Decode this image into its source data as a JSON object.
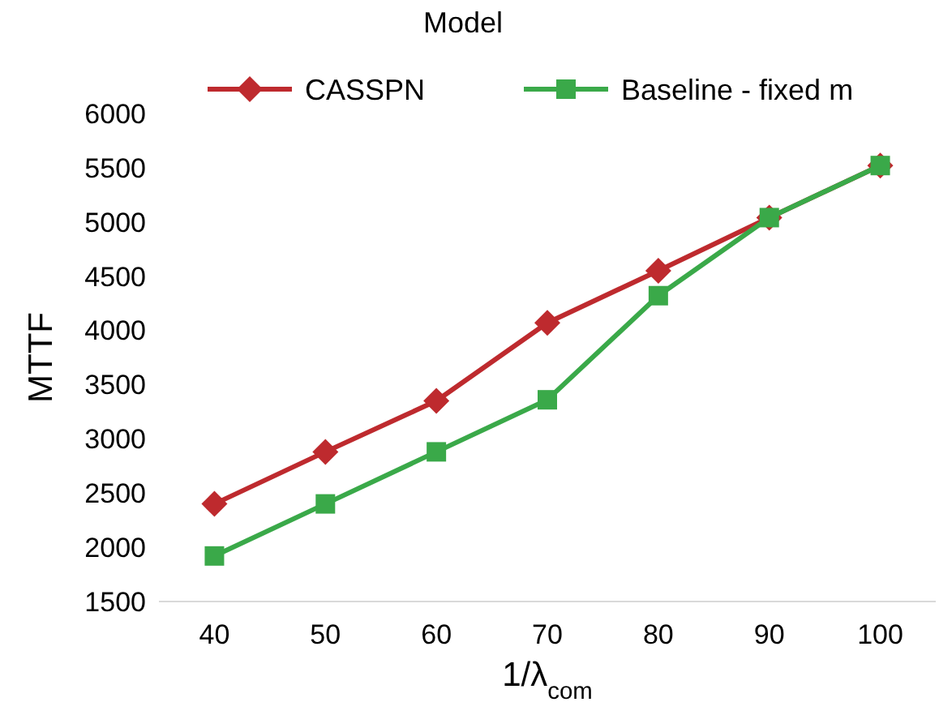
{
  "chart_data": {
    "type": "line",
    "legend_title": "Model",
    "xlabel": "1/λ$_{com}$",
    "ylabel": "MTTF",
    "categories": [
      "40",
      "50",
      "60",
      "70",
      "80",
      "90",
      "100"
    ],
    "series": [
      {
        "name": "CASSPN",
        "color": "#be2a2e",
        "marker": "diamond",
        "values": [
          2400,
          2880,
          3350,
          4070,
          4550,
          5040,
          5520
        ]
      },
      {
        "name": "Baseline - fixed m",
        "color": "#3aa949",
        "marker": "square",
        "values": [
          1920,
          2400,
          2880,
          3360,
          4320,
          5040,
          5520
        ]
      }
    ],
    "ylim": [
      1500,
      6000
    ],
    "yticks": [
      1500,
      2000,
      2500,
      3000,
      3500,
      4000,
      4500,
      5000,
      5500,
      6000
    ],
    "legend": "top",
    "grid": false
  }
}
